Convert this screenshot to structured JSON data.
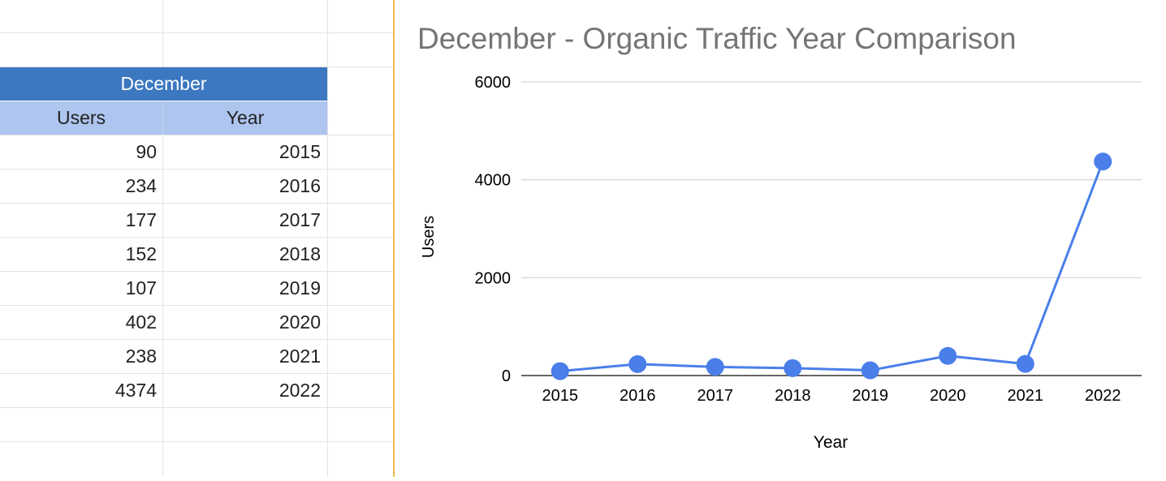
{
  "sheet": {
    "header": "December",
    "columns": [
      "Users",
      "Year"
    ],
    "rows": [
      {
        "users": "90",
        "year": "2015"
      },
      {
        "users": "234",
        "year": "2016"
      },
      {
        "users": "177",
        "year": "2017"
      },
      {
        "users": "152",
        "year": "2018"
      },
      {
        "users": "107",
        "year": "2019"
      },
      {
        "users": "402",
        "year": "2020"
      },
      {
        "users": "238",
        "year": "2021"
      },
      {
        "users": "4374",
        "year": "2022"
      }
    ]
  },
  "colors": {
    "header_bg": "#3c78c0",
    "subheader_bg": "#aec5ef",
    "series": "#4a7fea",
    "border_accent": "#f6b94d"
  },
  "chart_data": {
    "type": "line",
    "title": "December - Organic Traffic Year Comparison",
    "xlabel": "Year",
    "ylabel": "Users",
    "categories": [
      "2015",
      "2016",
      "2017",
      "2018",
      "2019",
      "2020",
      "2021",
      "2022"
    ],
    "series": [
      {
        "name": "Users",
        "values": [
          90,
          234,
          177,
          152,
          107,
          402,
          238,
          4374
        ]
      }
    ],
    "ylim": [
      0,
      6000
    ],
    "yticks": [
      0,
      2000,
      4000,
      6000
    ],
    "grid": true
  }
}
